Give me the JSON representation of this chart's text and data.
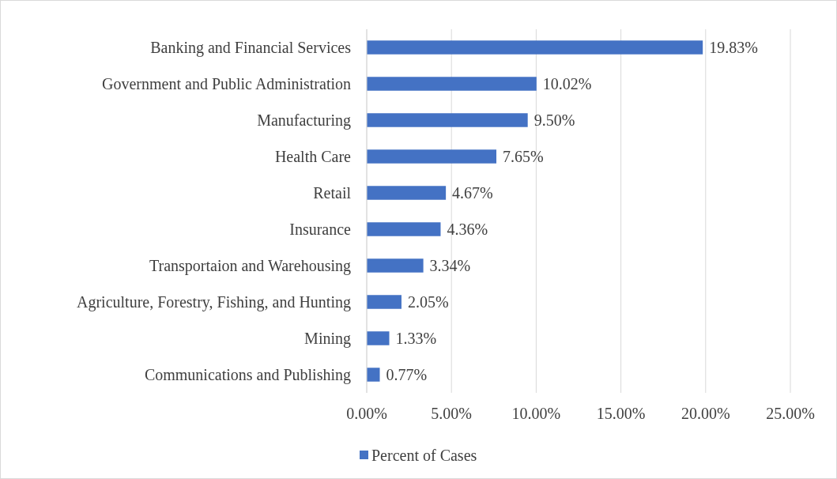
{
  "chart_data": {
    "type": "bar",
    "orientation": "horizontal",
    "categories": [
      "Banking and Financial Services",
      "Government and Public Administration",
      "Manufacturing",
      "Health Care",
      "Retail",
      "Insurance",
      "Transportaion and Warehousing",
      "Agriculture, Forestry, Fishing, and Hunting",
      "Mining",
      "Communications and Publishing"
    ],
    "series": [
      {
        "name": "Percent of Cases",
        "color": "#4472c4",
        "values": [
          19.83,
          10.02,
          9.5,
          7.65,
          4.67,
          4.36,
          3.34,
          2.05,
          1.33,
          0.77
        ],
        "value_labels": [
          "19.83%",
          "10.02%",
          "9.50%",
          "7.65%",
          "4.67%",
          "4.36%",
          "3.34%",
          "2.05%",
          "1.33%",
          "0.77%"
        ]
      }
    ],
    "xlim": [
      0,
      25
    ],
    "xticks": [
      {
        "value": 0,
        "label": "0.00%"
      },
      {
        "value": 5,
        "label": "5.00%"
      },
      {
        "value": 10,
        "label": "10.00%"
      },
      {
        "value": 15,
        "label": "15.00%"
      },
      {
        "value": 20,
        "label": "20.00%"
      },
      {
        "value": 25,
        "label": "25.00%"
      }
    ],
    "grid": "x",
    "legend": "bottom"
  }
}
